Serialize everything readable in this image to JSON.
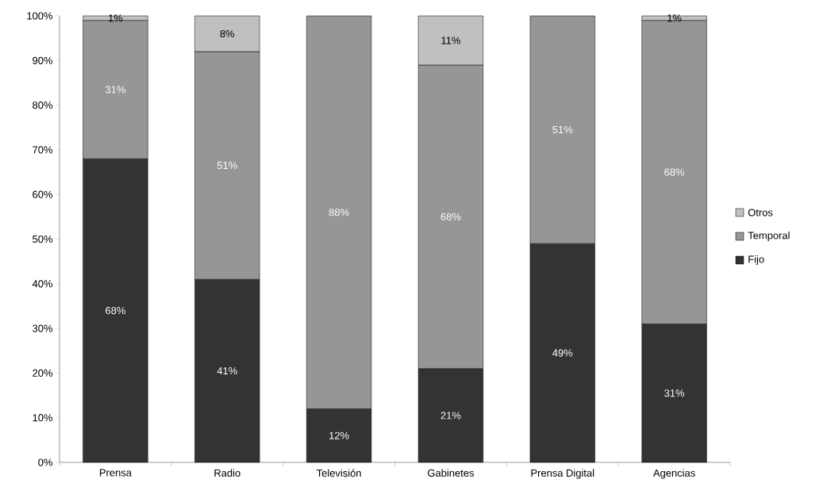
{
  "chart_data": {
    "type": "bar",
    "stacked": true,
    "categories": [
      "Prensa",
      "Radio",
      "Televisión",
      "Gabinetes",
      "Prensa Digital",
      "Agencias"
    ],
    "series": [
      {
        "name": "Fijo",
        "color": "#333333",
        "values": [
          68,
          41,
          12,
          21,
          49,
          31
        ],
        "value_labels": [
          "68%",
          "41%",
          "12%",
          "21%",
          "49%",
          "31%"
        ]
      },
      {
        "name": "Temporal",
        "color": "#969696",
        "values": [
          31,
          51,
          88,
          68,
          51,
          68
        ],
        "value_labels": [
          "31%",
          "51%",
          "88%",
          "68%",
          "51%",
          "68%"
        ]
      },
      {
        "name": "Otros",
        "color": "#c0c0c0",
        "values": [
          1,
          8,
          null,
          11,
          null,
          1
        ],
        "value_labels": [
          "1%",
          "8%",
          null,
          "11%",
          null,
          "1%"
        ]
      }
    ],
    "ylim": [
      0,
      100
    ],
    "yticks": [
      {
        "value": 0,
        "label": "0%"
      },
      {
        "value": 10,
        "label": "10%"
      },
      {
        "value": 20,
        "label": "20%"
      },
      {
        "value": 30,
        "label": "30%"
      },
      {
        "value": 40,
        "label": "40%"
      },
      {
        "value": 50,
        "label": "50%"
      },
      {
        "value": 60,
        "label": "60%"
      },
      {
        "value": 70,
        "label": "70%"
      },
      {
        "value": 80,
        "label": "80%"
      },
      {
        "value": 90,
        "label": "90%"
      },
      {
        "value": 100,
        "label": "100%"
      }
    ],
    "legend": "right",
    "grid": false
  }
}
